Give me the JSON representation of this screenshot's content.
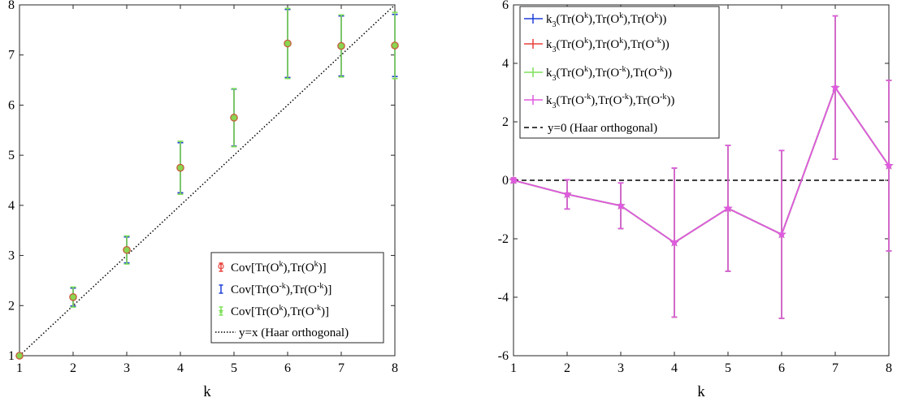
{
  "chart_data": [
    {
      "type": "scatter",
      "xlabel": "k",
      "ylabel": "",
      "xlim": [
        1,
        8
      ],
      "ylim": [
        1,
        8
      ],
      "xticks": [
        1,
        2,
        3,
        4,
        5,
        6,
        7,
        8
      ],
      "yticks": [
        1,
        2,
        3,
        4,
        5,
        6,
        7,
        8
      ],
      "grid": false,
      "legend_position": "bottom-right",
      "series": [
        {
          "name": "Cov[Tr(O^k),Tr(O^k)]",
          "legend_label": {
            "pre": "Cov[Tr(O",
            "s1": "k",
            "mid": "),Tr(O",
            "s2": "k",
            "post": ")]"
          },
          "color": "#e8413a",
          "marker": "circle",
          "x": [
            1,
            2,
            3,
            4,
            5,
            6,
            7,
            8
          ],
          "values": [
            1.0,
            2.17,
            3.11,
            4.75,
            5.75,
            7.23,
            7.18,
            7.19
          ],
          "err": [
            0.02,
            0.18,
            0.26,
            0.5,
            0.57,
            0.68,
            0.6,
            0.62
          ]
        },
        {
          "name": "Cov[Tr(O^-k),Tr(O^-k)]",
          "legend_label": {
            "pre": "Cov[Tr(O",
            "s1": "-k",
            "mid": "),Tr(O",
            "s2": "-k",
            "post": ")]"
          },
          "color": "#1f3fd8",
          "marker": "none",
          "x": [
            1,
            2,
            3,
            4,
            5,
            6,
            7,
            8
          ],
          "values": [
            1.0,
            2.17,
            3.11,
            4.75,
            5.75,
            7.23,
            7.18,
            7.19
          ],
          "err": [
            0.02,
            0.18,
            0.26,
            0.5,
            0.57,
            0.68,
            0.6,
            0.62
          ]
        },
        {
          "name": "Cov[Tr(O^k),Tr(O^-k)]",
          "legend_label": {
            "pre": "Cov[Tr(O",
            "s1": "k",
            "mid": "),Tr(O",
            "s2": "-k",
            "post": ")]"
          },
          "color": "#7ee05a",
          "marker": "star",
          "x": [
            1,
            2,
            3,
            4,
            5,
            6,
            7,
            8
          ],
          "values": [
            1.0,
            2.17,
            3.11,
            4.75,
            5.75,
            7.23,
            7.18,
            7.19
          ],
          "err": [
            0.02,
            0.2,
            0.28,
            0.53,
            0.58,
            0.7,
            0.62,
            0.66
          ]
        }
      ],
      "reference_line": {
        "label": "y=x (Haar orthogonal)",
        "style": "dotted",
        "color": "#000000",
        "x": [
          1,
          8
        ],
        "y": [
          1,
          8
        ]
      }
    },
    {
      "type": "line",
      "xlabel": "k",
      "ylabel": "",
      "xlim": [
        1,
        8
      ],
      "ylim": [
        -6,
        6
      ],
      "xticks": [
        1,
        2,
        3,
        4,
        5,
        6,
        7,
        8
      ],
      "yticks": [
        -6,
        -4,
        -2,
        0,
        2,
        4,
        6
      ],
      "grid": false,
      "legend_position": "top-left",
      "series": [
        {
          "name": "k3(Tr(O^k),Tr(O^k),Tr(O^k))",
          "legend_label": {
            "pre": "k",
            "sub": "3",
            "a": "(Tr(O",
            "s1": "k",
            "b": "),Tr(O",
            "s2": "k",
            "c": "),Tr(O",
            "s3": "k",
            "d": "))"
          },
          "color": "#1f3fd8",
          "x": [
            1,
            2,
            3,
            4,
            5,
            6,
            7,
            8
          ],
          "values": [
            0.0,
            -0.48,
            -0.87,
            -2.13,
            -0.96,
            -1.85,
            3.17,
            0.5
          ],
          "err": [
            0.08,
            0.5,
            0.78,
            2.55,
            2.15,
            2.87,
            2.45,
            2.92
          ]
        },
        {
          "name": "k3(Tr(O^k),Tr(O^k),Tr(O^-k))",
          "legend_label": {
            "pre": "k",
            "sub": "3",
            "a": "(Tr(O",
            "s1": "k",
            "b": "),Tr(O",
            "s2": "k",
            "c": "),Tr(O",
            "s3": "-k",
            "d": "))"
          },
          "color": "#e8413a",
          "x": [
            1,
            2,
            3,
            4,
            5,
            6,
            7,
            8
          ],
          "values": [
            0.0,
            -0.48,
            -0.87,
            -2.13,
            -0.96,
            -1.85,
            3.17,
            0.5
          ],
          "err": [
            0.08,
            0.5,
            0.78,
            2.55,
            2.15,
            2.87,
            2.45,
            2.92
          ]
        },
        {
          "name": "k3(Tr(O^k),Tr(O^-k),Tr(O^-k))",
          "legend_label": {
            "pre": "k",
            "sub": "3",
            "a": "(Tr(O",
            "s1": "k",
            "b": "),Tr(O",
            "s2": "-k",
            "c": "),Tr(O",
            "s3": "-k",
            "d": "))"
          },
          "color": "#7ee05a",
          "x": [
            1,
            2,
            3,
            4,
            5,
            6,
            7,
            8
          ],
          "values": [
            0.0,
            -0.48,
            -0.87,
            -2.13,
            -0.96,
            -1.85,
            3.17,
            0.5
          ],
          "err": [
            0.08,
            0.5,
            0.78,
            2.55,
            2.15,
            2.87,
            2.45,
            2.92
          ]
        },
        {
          "name": "k3(Tr(O^-k),Tr(O^-k),Tr(O^-k))",
          "legend_label": {
            "pre": "k",
            "sub": "3",
            "a": "(Tr(O",
            "s1": "-k",
            "b": "),Tr(O",
            "s2": "-k",
            "c": "),Tr(O",
            "s3": "-k",
            "d": "))"
          },
          "color": "#e05ae0",
          "x": [
            1,
            2,
            3,
            4,
            5,
            6,
            7,
            8
          ],
          "values": [
            0.0,
            -0.48,
            -0.87,
            -2.13,
            -0.96,
            -1.85,
            3.17,
            0.5
          ],
          "err": [
            0.08,
            0.5,
            0.78,
            2.55,
            2.15,
            2.87,
            2.45,
            2.92
          ]
        }
      ],
      "reference_line": {
        "label": "y=0 (Haar orthogonal)",
        "style": "dashed",
        "color": "#000000",
        "x": [
          1,
          8
        ],
        "y": [
          0,
          0
        ]
      }
    }
  ]
}
